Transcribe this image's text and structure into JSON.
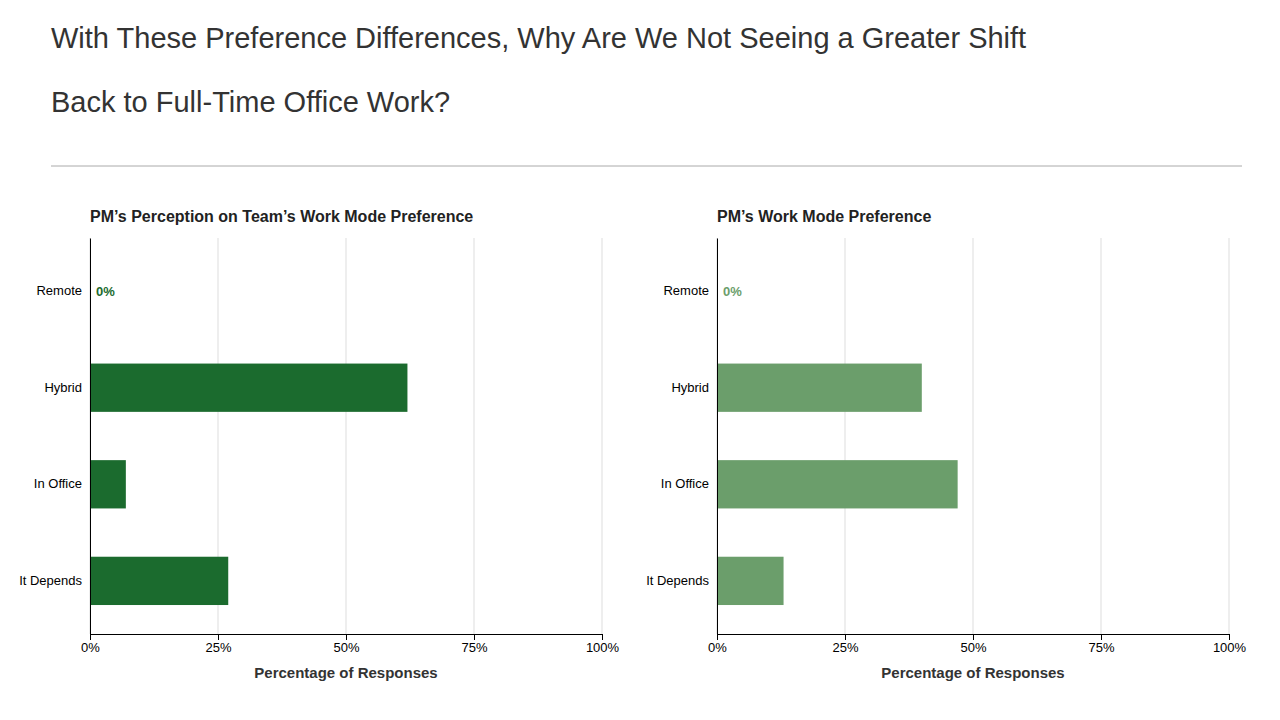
{
  "title": [
    "With These Preference Differences, Why Are We Not Seeing a Greater Shift",
    "Back to Full-Time Office Work?"
  ],
  "chart_data": [
    {
      "type": "bar",
      "orientation": "horizontal",
      "title": "PM’s Perception on Team’s Work Mode Preference",
      "categories": [
        "Remote",
        "Hybrid",
        "In Office",
        "It Depends"
      ],
      "values": [
        0,
        62,
        7,
        27
      ],
      "value_labels": [
        "0%",
        null,
        null,
        null
      ],
      "data_labels": true,
      "color": "#1B6B2E",
      "xlabel": "Percentage of Responses",
      "xlim": [
        0,
        100
      ],
      "xticks": [
        {
          "value": 0,
          "label": "0%"
        },
        {
          "value": 25,
          "label": "25%"
        },
        {
          "value": 50,
          "label": "50%"
        },
        {
          "value": 75,
          "label": "75%"
        },
        {
          "value": 100,
          "label": "100%"
        }
      ],
      "grid": true
    },
    {
      "type": "bar",
      "orientation": "horizontal",
      "title": "PM’s Work Mode Preference",
      "categories": [
        "Remote",
        "Hybrid",
        "In Office",
        "It Depends"
      ],
      "values": [
        0,
        40,
        47,
        13
      ],
      "value_labels": [
        "0%",
        null,
        null,
        null
      ],
      "data_labels": true,
      "color": "#6B9E6B",
      "xlabel": "Percentage of Responses",
      "xlim": [
        0,
        100
      ],
      "xticks": [
        {
          "value": 0,
          "label": "0%"
        },
        {
          "value": 25,
          "label": "25%"
        },
        {
          "value": 50,
          "label": "50%"
        },
        {
          "value": 75,
          "label": "75%"
        },
        {
          "value": 100,
          "label": "100%"
        }
      ],
      "grid": true
    }
  ]
}
